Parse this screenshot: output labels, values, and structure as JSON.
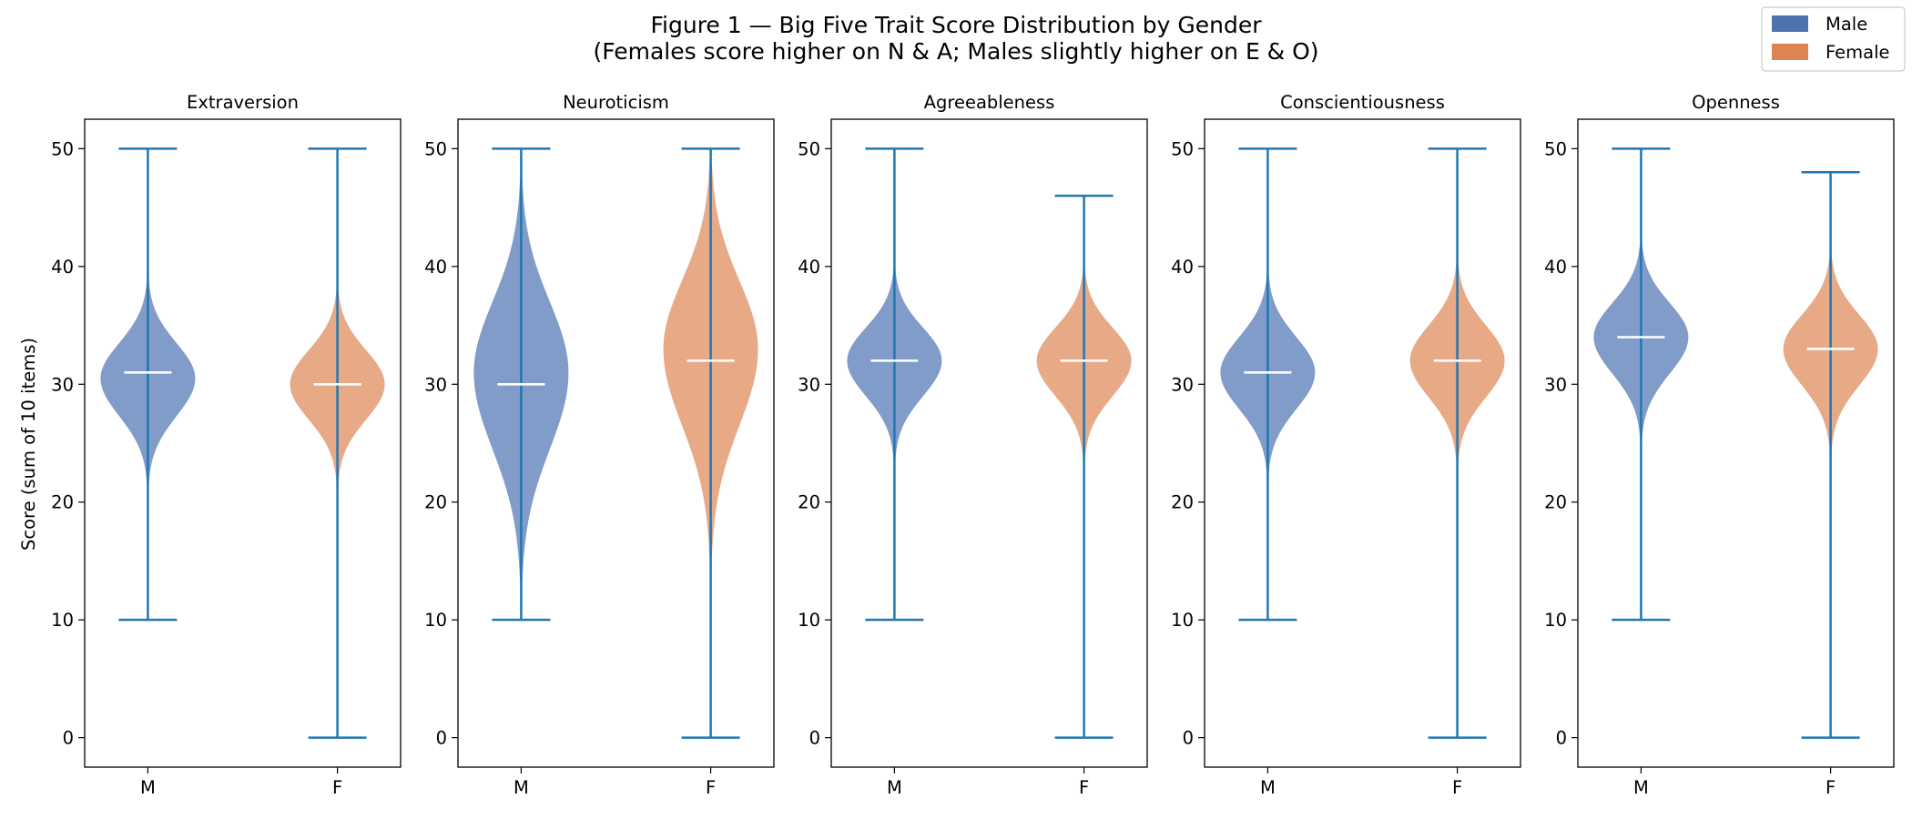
{
  "chart_data": {
    "type": "violin",
    "title": "Figure 1 — Big Five Trait Score Distribution by Gender",
    "subtitle": "(Females score higher on N & A; Males slightly higher on E & O)",
    "ylabel": "Score (sum of 10 items)",
    "ylim": [
      -2.5,
      52.5
    ],
    "yticks": [
      0,
      10,
      20,
      30,
      40,
      50
    ],
    "categories": [
      "M",
      "F"
    ],
    "grid": false,
    "legend": {
      "position": "top-right",
      "entries": [
        {
          "label": "Male",
          "color": "#4c72b0"
        },
        {
          "label": "Female",
          "color": "#dd8452"
        }
      ]
    },
    "colors": {
      "male": "#4c72b0",
      "female": "#dd8452",
      "whisker": "#1f77b4",
      "median": "#ffffff"
    },
    "panels": [
      {
        "title": "Extraversion",
        "male": {
          "min": 10,
          "max": 50,
          "median": 31,
          "mode": 30.5,
          "sigma_low": 3.2,
          "sigma_high": 3.0
        },
        "female": {
          "min": 0,
          "max": 50,
          "median": 30,
          "mode": 30.0,
          "sigma_low": 3.0,
          "sigma_high": 2.9
        }
      },
      {
        "title": "Neuroticism",
        "male": {
          "min": 10,
          "max": 50,
          "median": 30,
          "mode": 31.0,
          "sigma_low": 6.5,
          "sigma_high": 6.0
        },
        "female": {
          "min": 0,
          "max": 50,
          "median": 32,
          "mode": 33.0,
          "sigma_low": 6.5,
          "sigma_high": 5.8
        }
      },
      {
        "title": "Agreeableness",
        "male": {
          "min": 10,
          "max": 50,
          "median": 32,
          "mode": 32.0,
          "sigma_low": 3.0,
          "sigma_high": 2.8
        },
        "female": {
          "min": 0,
          "max": 46,
          "median": 32,
          "mode": 32.0,
          "sigma_low": 3.0,
          "sigma_high": 2.8
        }
      },
      {
        "title": "Conscientiousness",
        "male": {
          "min": 10,
          "max": 50,
          "median": 31,
          "mode": 31.0,
          "sigma_low": 3.1,
          "sigma_high": 3.0
        },
        "female": {
          "min": 0,
          "max": 50,
          "median": 32,
          "mode": 32.0,
          "sigma_low": 3.1,
          "sigma_high": 3.0
        }
      },
      {
        "title": "Openness",
        "male": {
          "min": 10,
          "max": 50,
          "median": 34,
          "mode": 34.0,
          "sigma_low": 3.1,
          "sigma_high": 2.9
        },
        "female": {
          "min": 0,
          "max": 48,
          "median": 33,
          "mode": 33.0,
          "sigma_low": 3.1,
          "sigma_high": 2.9
        }
      }
    ]
  }
}
